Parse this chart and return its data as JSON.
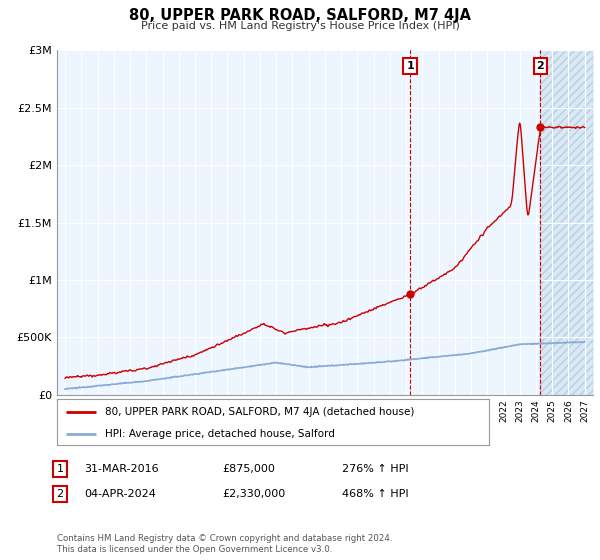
{
  "title": "80, UPPER PARK ROAD, SALFORD, M7 4JA",
  "subtitle": "Price paid vs. HM Land Registry's House Price Index (HPI)",
  "background_color": "#ddeeff",
  "hatch_bg_color": "#ccddf0",
  "red_line_color": "#cc0000",
  "blue_line_color": "#88aad4",
  "marker1_x": 2016.25,
  "marker1_y": 875000,
  "marker2_x": 2024.27,
  "marker2_y": 2330000,
  "annotation1": [
    "1",
    "31-MAR-2016",
    "£875,000",
    "276% ↑ HPI"
  ],
  "annotation2": [
    "2",
    "04-APR-2024",
    "£2,330,000",
    "468% ↑ HPI"
  ],
  "legend_line1": "80, UPPER PARK ROAD, SALFORD, M7 4JA (detached house)",
  "legend_line2": "HPI: Average price, detached house, Salford",
  "footer": "Contains HM Land Registry data © Crown copyright and database right 2024.\nThis data is licensed under the Open Government Licence v3.0.",
  "yticks": [
    0,
    500000,
    1000000,
    1500000,
    2000000,
    2500000,
    3000000
  ],
  "ytick_labels": [
    "£0",
    "£500K",
    "£1M",
    "£1.5M",
    "£2M",
    "£2.5M",
    "£3M"
  ],
  "xmin": 1994.5,
  "xmax": 2027.5,
  "ymin": 0,
  "ymax": 3000000,
  "hatch_start_x": 2024.27
}
